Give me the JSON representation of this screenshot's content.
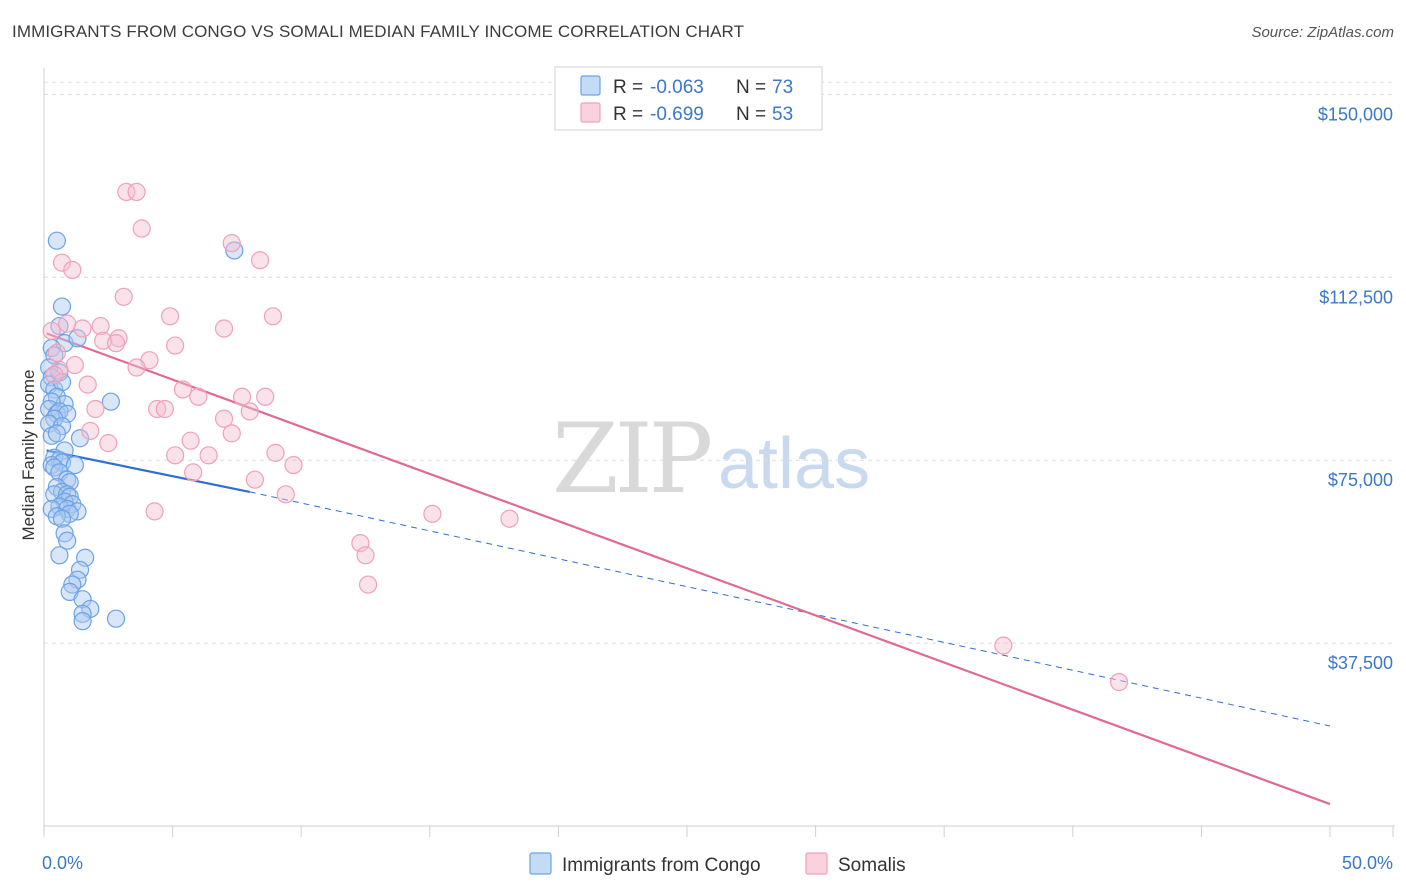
{
  "title": "IMMIGRANTS FROM CONGO VS SOMALI MEDIAN FAMILY INCOME CORRELATION CHART",
  "source": "Source: ZipAtlas.com",
  "watermark": {
    "zip": "ZIP",
    "atlas": "atlas"
  },
  "legend": {
    "items": [
      {
        "r_label": "R = ",
        "r_value": "-0.063",
        "n_label": "N = ",
        "n_value": "73",
        "color": "#6aa3e8"
      },
      {
        "r_label": "R = ",
        "r_value": "-0.699",
        "n_label": "N = ",
        "n_value": "53",
        "color": "#f0a0b8"
      }
    ]
  },
  "chart_data": {
    "type": "scatter",
    "title": "IMMIGRANTS FROM CONGO VS SOMALI MEDIAN FAMILY INCOME CORRELATION CHART",
    "xlabel": "",
    "ylabel": "Median Family Income",
    "xlim": [
      0,
      50
    ],
    "ylim": [
      0,
      155000
    ],
    "x_tick_labels": [
      "0.0%",
      "50.0%"
    ],
    "y_ticks": [
      37500,
      75000,
      112500,
      150000
    ],
    "y_tick_labels": [
      "$37,500",
      "$75,000",
      "$112,500",
      "$150,000"
    ],
    "grid": true,
    "series": [
      {
        "name": "Immigrants from Congo",
        "color": "#6aa3e8",
        "line_color": "#2f6fd0",
        "trend": {
          "x_start": 0.1,
          "y_start": 77000,
          "x_solid_end": 8,
          "y_solid_end": 68500,
          "x_end": 50,
          "y_end": 20500
        },
        "points": [
          [
            0.5,
            120000
          ],
          [
            0.7,
            106500
          ],
          [
            0.6,
            102500
          ],
          [
            0.8,
            99000
          ],
          [
            0.3,
            98000
          ],
          [
            1.3,
            100000
          ],
          [
            0.4,
            96500
          ],
          [
            0.2,
            94000
          ],
          [
            0.6,
            93000
          ],
          [
            0.3,
            92000
          ],
          [
            0.2,
            90500
          ],
          [
            0.4,
            89500
          ],
          [
            0.7,
            91000
          ],
          [
            0.5,
            88000
          ],
          [
            0.8,
            86500
          ],
          [
            0.3,
            87000
          ],
          [
            0.2,
            85500
          ],
          [
            0.5,
            84500
          ],
          [
            0.6,
            85000
          ],
          [
            0.9,
            84500
          ],
          [
            0.4,
            83500
          ],
          [
            0.2,
            82500
          ],
          [
            0.7,
            82000
          ],
          [
            2.6,
            87000
          ],
          [
            0.3,
            80000
          ],
          [
            0.5,
            80500
          ],
          [
            1.4,
            79500
          ],
          [
            0.8,
            77000
          ],
          [
            0.4,
            75500
          ],
          [
            0.6,
            75000
          ],
          [
            0.7,
            74500
          ],
          [
            0.3,
            74000
          ],
          [
            1.2,
            74000
          ],
          [
            0.4,
            73500
          ],
          [
            0.6,
            72500
          ],
          [
            0.9,
            71000
          ],
          [
            1.0,
            70500
          ],
          [
            0.5,
            69500
          ],
          [
            0.7,
            68500
          ],
          [
            0.4,
            68000
          ],
          [
            0.9,
            68000
          ],
          [
            1.0,
            67500
          ],
          [
            0.8,
            66500
          ],
          [
            1.1,
            66000
          ],
          [
            0.6,
            65500
          ],
          [
            0.3,
            65000
          ],
          [
            0.9,
            65000
          ],
          [
            1.3,
            64500
          ],
          [
            1.0,
            64000
          ],
          [
            0.5,
            63500
          ],
          [
            0.7,
            63000
          ],
          [
            0.8,
            60000
          ],
          [
            0.9,
            58500
          ],
          [
            0.6,
            55500
          ],
          [
            1.6,
            55000
          ],
          [
            1.4,
            52500
          ],
          [
            1.3,
            50500
          ],
          [
            1.1,
            49500
          ],
          [
            1.0,
            48000
          ],
          [
            1.5,
            46500
          ],
          [
            1.8,
            44500
          ],
          [
            1.5,
            43500
          ],
          [
            1.5,
            42000
          ],
          [
            2.8,
            42500
          ],
          [
            7.4,
            118000
          ]
        ]
      },
      {
        "name": "Somalis",
        "color": "#f0a0b8",
        "line_color": "#e06a92",
        "trend": {
          "x_start": 0.1,
          "y_start": 101000,
          "x_end": 50,
          "y_end": 4500
        },
        "points": [
          [
            3.2,
            130000
          ],
          [
            3.6,
            130000
          ],
          [
            3.8,
            122500
          ],
          [
            7.3,
            119500
          ],
          [
            8.4,
            116000
          ],
          [
            0.7,
            115500
          ],
          [
            1.1,
            114000
          ],
          [
            3.1,
            108500
          ],
          [
            4.9,
            104500
          ],
          [
            8.9,
            104500
          ],
          [
            0.9,
            103000
          ],
          [
            1.5,
            102000
          ],
          [
            2.2,
            102500
          ],
          [
            7.0,
            102000
          ],
          [
            0.3,
            101500
          ],
          [
            2.9,
            100000
          ],
          [
            2.3,
            99500
          ],
          [
            2.8,
            99000
          ],
          [
            5.1,
            98500
          ],
          [
            0.5,
            97000
          ],
          [
            4.1,
            95500
          ],
          [
            1.2,
            94500
          ],
          [
            3.6,
            94000
          ],
          [
            0.6,
            93500
          ],
          [
            0.4,
            92500
          ],
          [
            1.7,
            90500
          ],
          [
            5.4,
            89500
          ],
          [
            6.0,
            88000
          ],
          [
            7.7,
            88000
          ],
          [
            8.6,
            88000
          ],
          [
            2.0,
            85500
          ],
          [
            4.4,
            85500
          ],
          [
            4.7,
            85500
          ],
          [
            8.0,
            85000
          ],
          [
            7.0,
            83500
          ],
          [
            1.8,
            81000
          ],
          [
            7.3,
            80500
          ],
          [
            5.7,
            79000
          ],
          [
            2.5,
            78500
          ],
          [
            9.0,
            76500
          ],
          [
            6.4,
            76000
          ],
          [
            5.1,
            76000
          ],
          [
            9.7,
            74000
          ],
          [
            5.8,
            72500
          ],
          [
            8.2,
            71000
          ],
          [
            9.4,
            68000
          ],
          [
            4.3,
            64500
          ],
          [
            15.1,
            64000
          ],
          [
            18.1,
            63000
          ],
          [
            12.3,
            58000
          ],
          [
            12.5,
            55500
          ],
          [
            12.6,
            49500
          ],
          [
            37.3,
            37000
          ],
          [
            41.8,
            29500
          ]
        ]
      }
    ]
  },
  "bottom_legend": [
    {
      "label": "Immigrants from Congo",
      "color": "#6aa3e8"
    },
    {
      "label": "Somalis",
      "color": "#f0a0b8"
    }
  ]
}
